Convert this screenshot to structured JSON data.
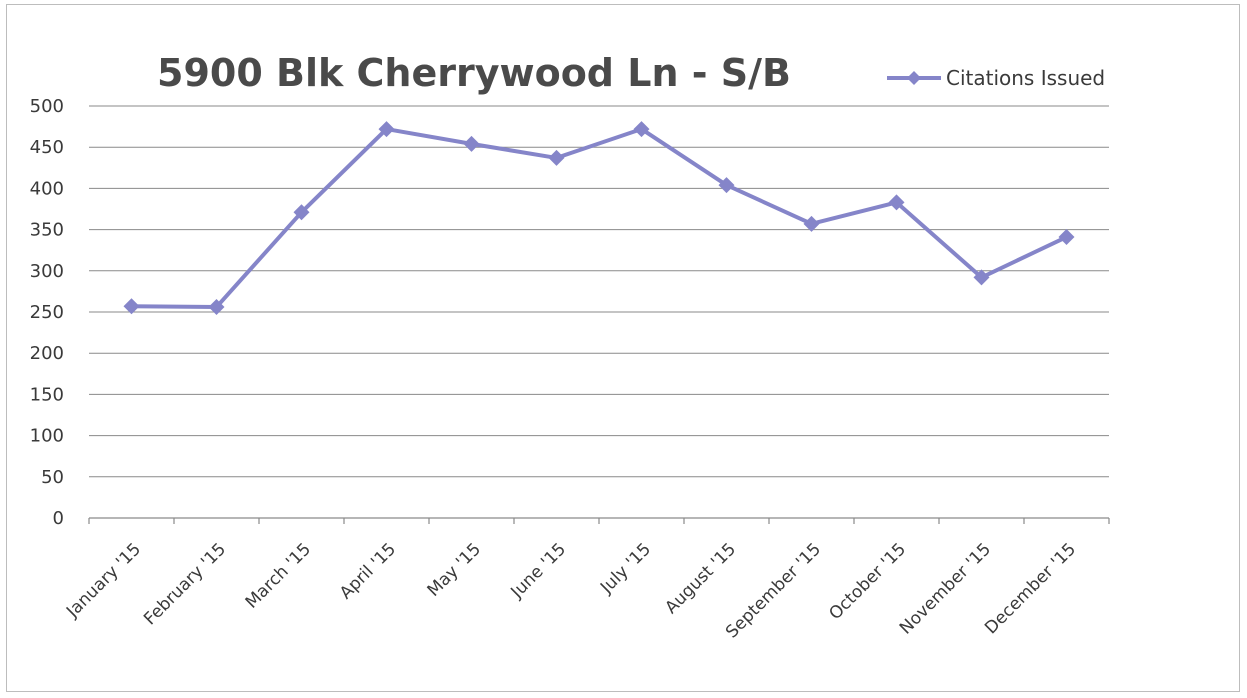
{
  "chart_data": {
    "type": "line",
    "title": "5900 Blk Cherrywood Ln - S/B",
    "xlabel": "",
    "ylabel": "",
    "categories": [
      "January '15",
      "February '15",
      "March '15",
      "April '15",
      "May '15",
      "June '15",
      "July '15",
      "August '15",
      "September '15",
      "October '15",
      "November '15",
      "December '15"
    ],
    "series": [
      {
        "name": "Citations Issued",
        "values": [
          257,
          256,
          371,
          472,
          454,
          437,
          472,
          404,
          357,
          383,
          292,
          341
        ],
        "color": "#8585c9",
        "marker": "diamond"
      }
    ],
    "y_ticks": [
      "0",
      "50",
      "100",
      "150",
      "200",
      "250",
      "300",
      "350",
      "400",
      "450",
      "500"
    ],
    "ylim": [
      0,
      500
    ],
    "grid": true,
    "legend_position": "top-right"
  }
}
